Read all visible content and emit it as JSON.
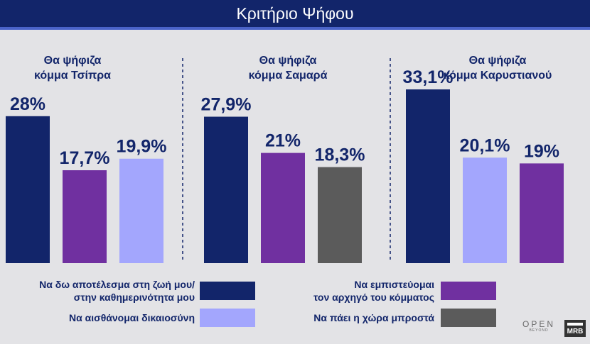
{
  "title": "Κριτήριο Ψήφου",
  "colors": {
    "header_bg": "#12256a",
    "header_border": "#4a63c8",
    "background": "#e3e3e6",
    "text": "#12256a"
  },
  "chart_data": [
    {
      "type": "bar",
      "title_lines": [
        "Θα ψήφιζα",
        "κόμμα Τσίπρα"
      ],
      "categories": [
        "Να δω αποτέλεσμα στη ζωή μου/ στην καθημερινότητα μου",
        "Να εμπιστεύομαι τον αρχηγό του κόμματος",
        "Να αισθάνομαι δικαιοσύνη"
      ],
      "values": [
        28,
        17.7,
        19.9
      ],
      "labels": [
        "28%",
        "17,7%",
        "19,9%"
      ],
      "colors": [
        "#12256a",
        "#7030a0",
        "#a3a6fd"
      ],
      "ylim": [
        0,
        36
      ]
    },
    {
      "type": "bar",
      "title_lines": [
        "Θα ψήφιζα",
        "κόμμα Σαμαρά"
      ],
      "categories": [
        "Να δω αποτέλεσμα στη ζωή μου/ στην καθημερινότητα μου",
        "Να εμπιστεύομαι τον αρχηγό του κόμματος",
        "Να πάει η χώρα μπροστά"
      ],
      "values": [
        27.9,
        21,
        18.3
      ],
      "labels": [
        "27,9%",
        "21%",
        "18,3%"
      ],
      "colors": [
        "#12256a",
        "#7030a0",
        "#5b5b5b"
      ],
      "ylim": [
        0,
        36
      ]
    },
    {
      "type": "bar",
      "title_lines": [
        "Θα ψήφιζα",
        "κόμμα Καρυστιανού"
      ],
      "categories": [
        "Να δω αποτέλεσμα στη ζωή μου/ στην καθημερινότητα μου",
        "Να αισθάνομαι δικαιοσύνη",
        "Να εμπιστεύομαι τον αρχηγό του κόμματος"
      ],
      "values": [
        33.1,
        20.1,
        19
      ],
      "labels": [
        "33,1%",
        "20,1%",
        "19%"
      ],
      "colors": [
        "#12256a",
        "#a3a6fd",
        "#7030a0"
      ],
      "ylim": [
        0,
        36
      ]
    }
  ],
  "legend": [
    {
      "lines": [
        "Να δω αποτέλεσμα στη ζωή μου/",
        "στην καθημερινότητα μου"
      ],
      "color": "#12256a"
    },
    {
      "lines": [
        "Να εμπιστεύομαι",
        "τον αρχηγό του κόμματος"
      ],
      "color": "#7030a0"
    },
    {
      "lines": [
        "Να αισθάνομαι δικαιοσύνη"
      ],
      "color": "#a3a6fd"
    },
    {
      "lines": [
        "Να πάει η χώρα μπροστά"
      ],
      "color": "#5b5b5b"
    }
  ],
  "logos": {
    "open": "OPEN",
    "open_sub": "BEYOND",
    "mrb": "MRB"
  }
}
